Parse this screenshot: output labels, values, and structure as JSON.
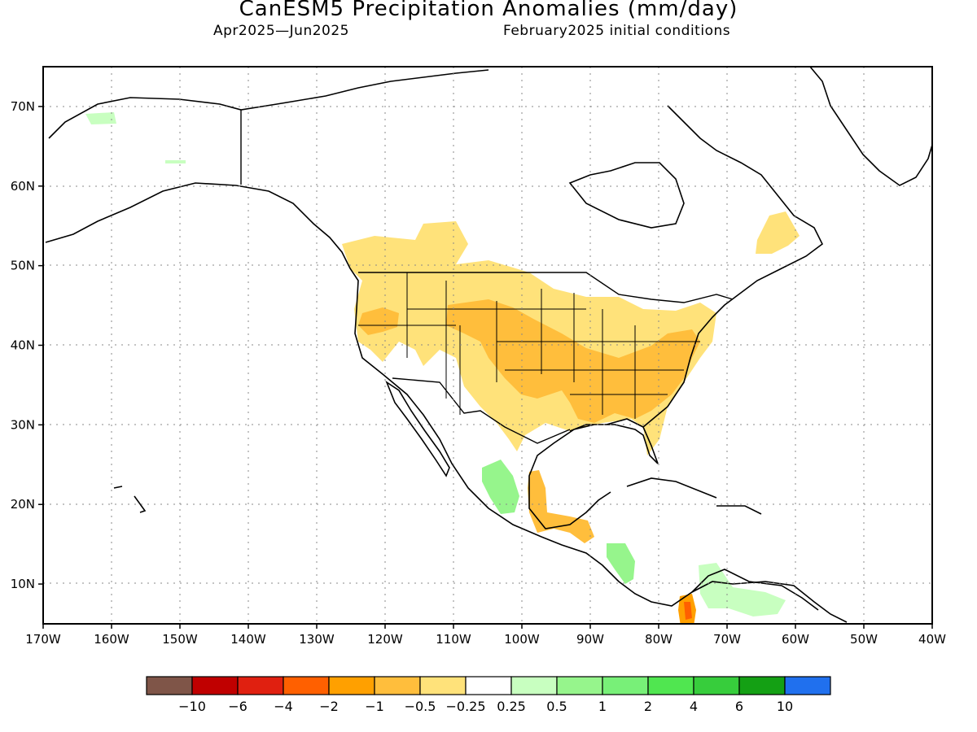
{
  "title": "CanESM5 Precipitation Anomalies (mm/day)",
  "subtitle_left": "Apr2025—Jun2025",
  "subtitle_right": "February2025 initial conditions",
  "chart_data": {
    "type": "heatmap",
    "map_extent": {
      "lon": [
        -170,
        -40
      ],
      "lat": [
        5,
        75
      ]
    },
    "x_ticks": [
      "170W",
      "160W",
      "150W",
      "140W",
      "130W",
      "120W",
      "110W",
      "100W",
      "90W",
      "80W",
      "70W",
      "60W",
      "50W",
      "40W"
    ],
    "y_ticks": [
      "10N",
      "20N",
      "30N",
      "40N",
      "50N",
      "60N",
      "70N"
    ],
    "grid": true,
    "colorbar": {
      "colors": [
        "#7f5548",
        "#c00000",
        "#e02010",
        "#ff6000",
        "#ffa000",
        "#ffbe3c",
        "#ffe27a",
        "#ffffff",
        "#c8ffc0",
        "#96f58c",
        "#78f078",
        "#50e650",
        "#37cd3c",
        "#14a014",
        "#2070ee"
      ],
      "labels": [
        "−10",
        "−6",
        "−4",
        "−2",
        "−1",
        "−0.5",
        "−0.25",
        "0.25",
        "0.5",
        "1",
        "2",
        "4",
        "6",
        "10"
      ]
    },
    "anomaly_regions": [
      {
        "region": "US northern plains / Pacific NW",
        "level": "-0.5 to -0.25"
      },
      {
        "region": "Central & southeastern US",
        "level": "-1 to -0.5"
      },
      {
        "region": "Southern Mexico / Yucatan",
        "level": "-1 to -0.5"
      },
      {
        "region": "Western Mexico",
        "level": "0.5 to 1"
      },
      {
        "region": "Central America (Honduras/Nicaragua)",
        "level": "0.5 to 1"
      },
      {
        "region": "Northern Venezuela",
        "level": "0.25 to 0.5"
      },
      {
        "region": "Labrador",
        "level": "-0.5 to -0.25"
      }
    ]
  }
}
